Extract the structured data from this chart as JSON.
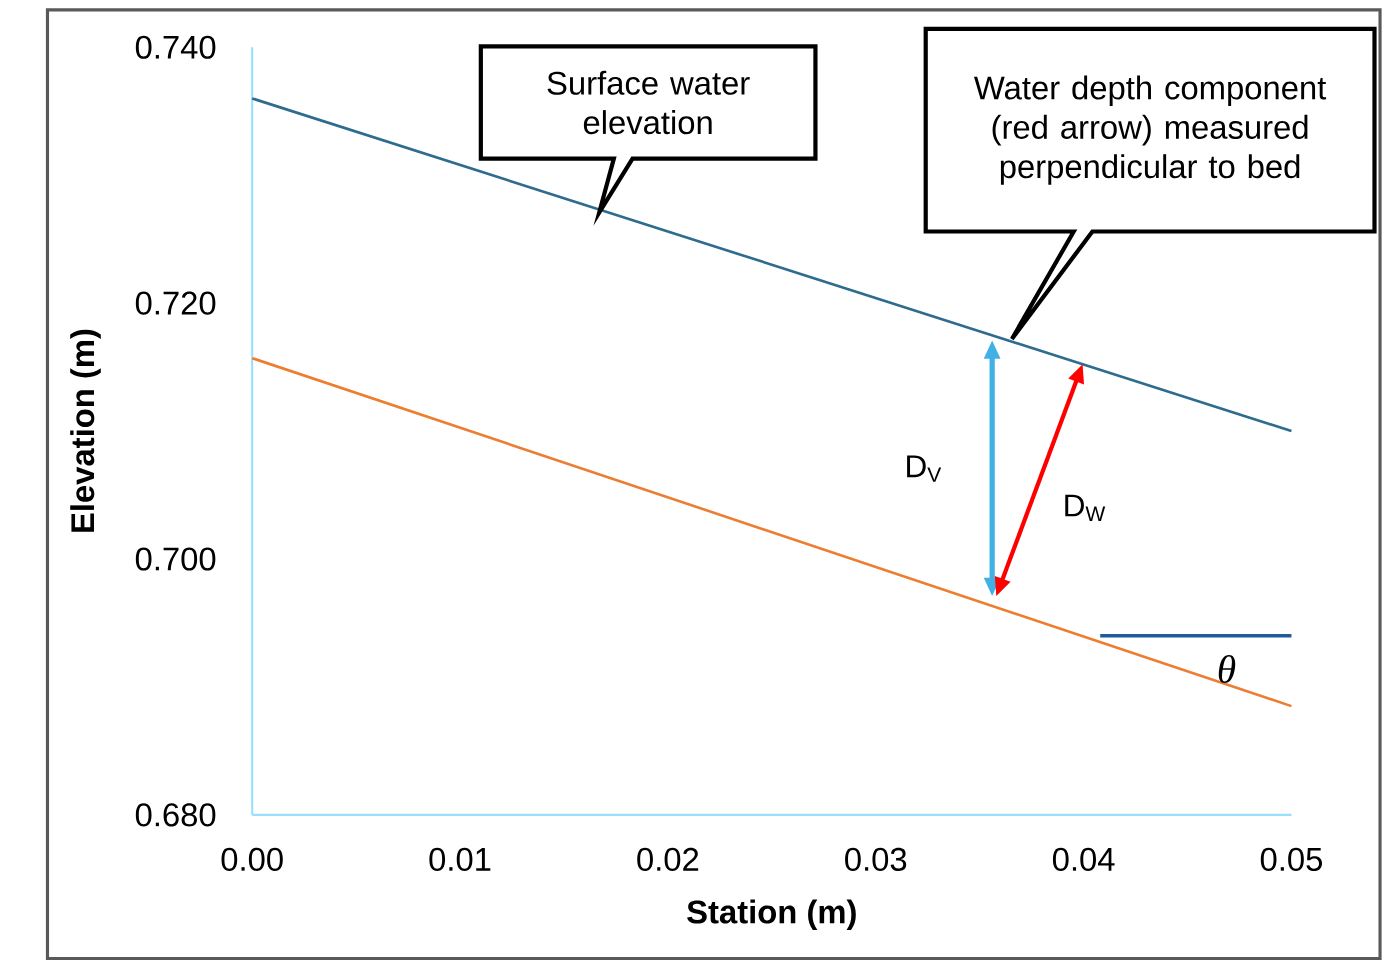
{
  "chart_data": {
    "type": "line",
    "xlabel": "Station (m)",
    "ylabel": "Elevation (m)",
    "xlim": [
      0,
      0.05
    ],
    "ylim": [
      0.68,
      0.74
    ],
    "xticks": [
      {
        "value": 0,
        "label": "0.00"
      },
      {
        "value": 0.01,
        "label": "0.01"
      },
      {
        "value": 0.02,
        "label": "0.02"
      },
      {
        "value": 0.03,
        "label": "0.03"
      },
      {
        "value": 0.04,
        "label": "0.04"
      },
      {
        "value": 0.05,
        "label": "0.05"
      }
    ],
    "yticks": [
      {
        "value": 0.68,
        "label": "0.680"
      },
      {
        "value": 0.7,
        "label": "0.700"
      },
      {
        "value": 0.72,
        "label": "0.720"
      },
      {
        "value": 0.74,
        "label": "0.740"
      }
    ],
    "series": [
      {
        "color": "#2e6b8e",
        "x": [
          0,
          0.05
        ],
        "values": [
          0.736,
          0.71
        ]
      },
      {
        "color": "#ed7d31",
        "x": [
          0,
          0.05
        ],
        "values": [
          0.7157,
          0.6885
        ]
      },
      {
        "color": "#1f5a9a",
        "x": [
          0.0408,
          0.05
        ],
        "values": [
          0.694,
          0.694
        ]
      }
    ],
    "annotations": [
      {
        "text": "Surface water elevation",
        "x": 0.0167,
        "y": 0.7271
      },
      "Water depth component (red arrow) measured perpendicular to bed",
      "D$_{V}$",
      "D$_{W}$",
      "θ"
    ]
  }
}
